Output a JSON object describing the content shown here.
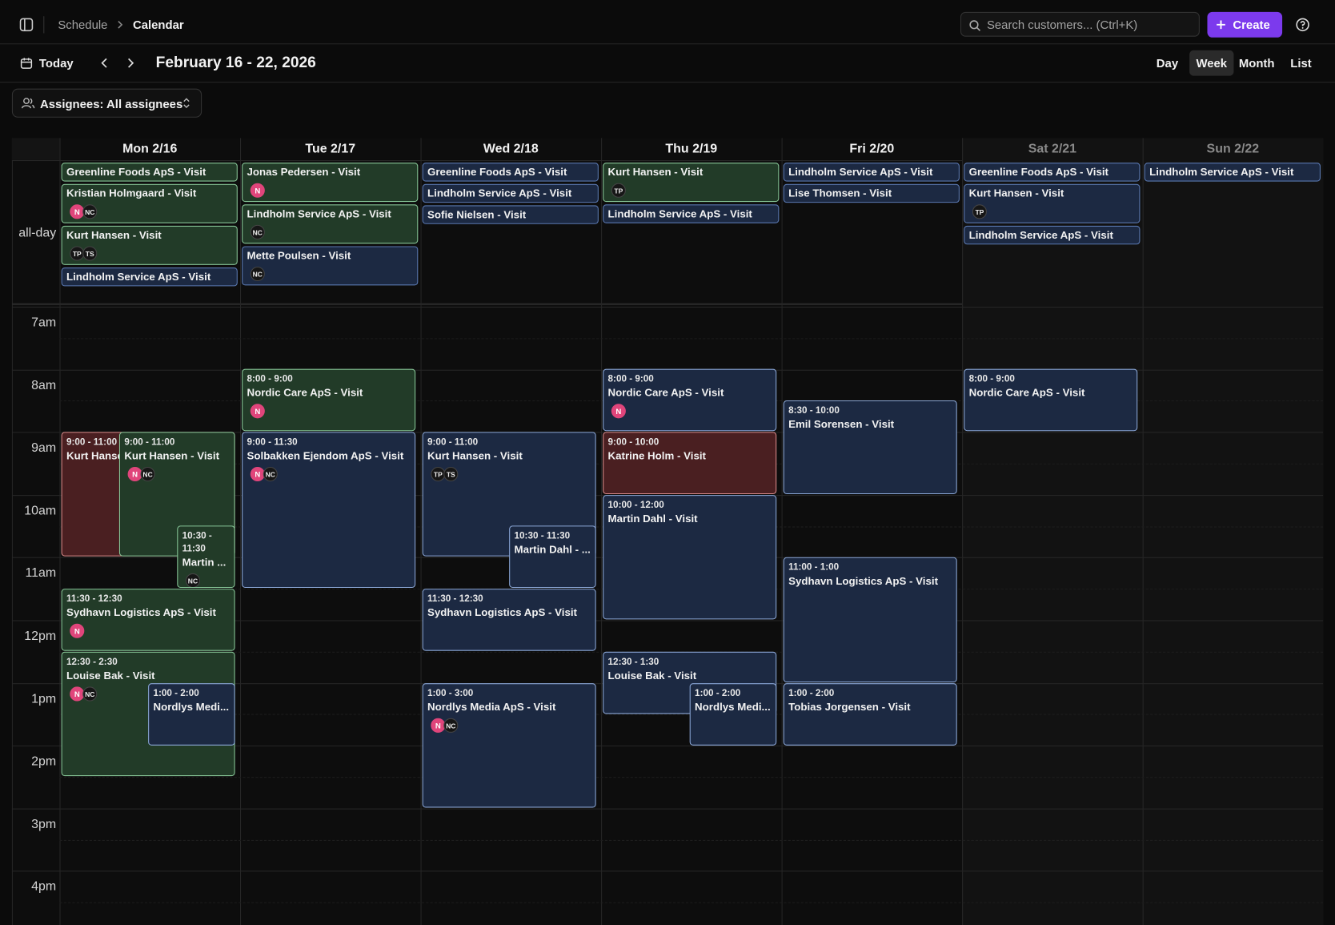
{
  "header": {
    "breadcrumb": [
      "Schedule",
      "Calendar"
    ],
    "search_placeholder": "Search customers... (Ctrl+K)",
    "create_button": "Create"
  },
  "toolbar": {
    "today": "Today",
    "date_range": "February 16 - 22, 2026",
    "views": [
      "Day",
      "Week",
      "Month",
      "List"
    ]
  },
  "filter": {
    "assignees": "Assignees: All assignees"
  },
  "calendar": {
    "all_day_label": "all-day",
    "hours": [
      "7am",
      "8am",
      "9am",
      "10am",
      "11am",
      "12pm",
      "1pm",
      "2pm",
      "3pm",
      "4pm"
    ],
    "days": [
      {
        "label": "Mon 2/16",
        "all_day": [
          {
            "title": "Greenline Foods ApS - Visit"
          },
          {
            "title": "Kristian Holmgaard - Visit",
            "assignees": [
              "N",
              "NC"
            ]
          },
          {
            "title": "Kurt Hansen - Visit",
            "assignees": [
              "TP",
              "TS"
            ]
          },
          {
            "title": "Lindholm Service ApS - Visit"
          }
        ],
        "events": [
          {
            "time": "9:00 - 11:00",
            "title": "Kurt Hansen - Visit"
          },
          {
            "time": "9:00 - 11:00",
            "title": "Kurt Hansen - Visit",
            "assignees": [
              "N",
              "NC"
            ]
          },
          {
            "time": "10:30 - 11:30",
            "title": "Martin ...",
            "assignees": [
              "NC"
            ]
          },
          {
            "time": "11:30 - 12:30",
            "title": "Sydhavn Logistics ApS - Visit",
            "assignees": [
              "N"
            ]
          },
          {
            "time": "12:30 - 2:30",
            "title": "Louise Bak - Visit",
            "assignees": [
              "N",
              "NC"
            ]
          },
          {
            "time": "1:00 - 2:00",
            "title": "Nordlys Medi..."
          }
        ]
      },
      {
        "label": "Tue 2/17",
        "all_day": [
          {
            "title": "Jonas Pedersen - Visit",
            "assignees": [
              "N"
            ]
          },
          {
            "title": "Lindholm Service ApS - Visit",
            "assignees": [
              "NC"
            ]
          },
          {
            "title": "Mette Poulsen - Visit",
            "assignees": [
              "NC"
            ]
          }
        ],
        "events": [
          {
            "time": "8:00 - 9:00",
            "title": "Nordic Care ApS - Visit",
            "assignees": [
              "N"
            ]
          },
          {
            "time": "9:00 - 11:30",
            "title": "Solbakken Ejendom ApS - Visit",
            "assignees": [
              "N",
              "NC"
            ]
          }
        ]
      },
      {
        "label": "Wed 2/18",
        "all_day": [
          {
            "title": "Greenline Foods ApS - Visit"
          },
          {
            "title": "Lindholm Service ApS - Visit"
          },
          {
            "title": "Sofie Nielsen - Visit"
          }
        ],
        "events": [
          {
            "time": "9:00 - 11:00",
            "title": "Kurt Hansen - Visit",
            "assignees": [
              "TP",
              "TS"
            ]
          },
          {
            "time": "10:30 - 11:30",
            "title": "Martin Dahl - ..."
          },
          {
            "time": "11:30 - 12:30",
            "title": "Sydhavn Logistics ApS - Visit"
          },
          {
            "time": "1:00 - 3:00",
            "title": "Nordlys Media ApS - Visit",
            "assignees": [
              "N",
              "NC"
            ]
          }
        ]
      },
      {
        "label": "Thu 2/19",
        "all_day": [
          {
            "title": "Kurt Hansen - Visit",
            "assignees": [
              "TP"
            ]
          },
          {
            "title": "Lindholm Service ApS - Visit"
          }
        ],
        "events": [
          {
            "time": "8:00 - 9:00",
            "title": "Nordic Care ApS - Visit",
            "assignees": [
              "N"
            ]
          },
          {
            "time": "9:00 - 10:00",
            "title": "Katrine Holm - Visit"
          },
          {
            "time": "10:00 - 12:00",
            "title": "Martin Dahl - Visit"
          },
          {
            "time": "12:30 - 1:30",
            "title": "Louise Bak - Visit"
          },
          {
            "time": "1:00 - 2:00",
            "title": "Nordlys Medi..."
          }
        ]
      },
      {
        "label": "Fri 2/20",
        "all_day": [
          {
            "title": "Lindholm Service ApS - Visit"
          },
          {
            "title": "Lise Thomsen - Visit"
          }
        ],
        "events": [
          {
            "time": "8:30 - 10:00",
            "title": "Emil Sorensen - Visit"
          },
          {
            "time": "11:00 - 1:00",
            "title": "Sydhavn Logistics ApS - Visit"
          },
          {
            "time": "1:00 - 2:00",
            "title": "Tobias Jorgensen - Visit"
          }
        ]
      },
      {
        "label": "Sat 2/21",
        "all_day": [
          {
            "title": "Greenline Foods ApS - Visit"
          },
          {
            "title": "Kurt Hansen - Visit",
            "assignees": [
              "TP"
            ]
          },
          {
            "title": "Lindholm Service ApS - Visit"
          }
        ],
        "events": [
          {
            "time": "8:00 - 9:00",
            "title": "Nordic Care ApS - Visit"
          }
        ]
      },
      {
        "label": "Sun 2/22",
        "all_day": [
          {
            "title": "Lindholm Service ApS - Visit"
          }
        ]
      }
    ]
  }
}
